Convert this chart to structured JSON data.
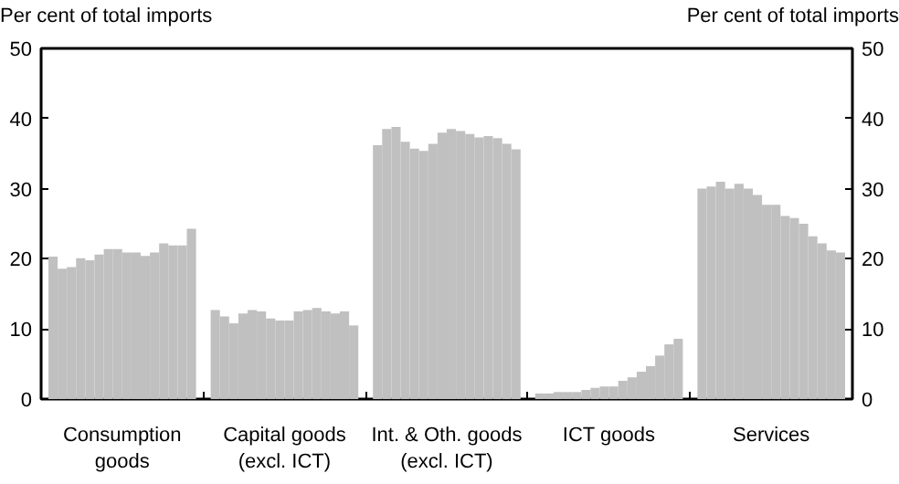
{
  "chart_data": {
    "type": "bar",
    "ylabel": "Per cent of total imports",
    "y2label": "Per cent of total imports",
    "categories": [
      "Consumption\ngoods",
      "Capital goods\n(excl. ICT)",
      "Int. & Oth. goods\n(excl. ICT)",
      "ICT goods",
      "Services"
    ],
    "ylim": [
      0,
      50
    ],
    "yticks": [
      0,
      10,
      20,
      30,
      40,
      50
    ],
    "y2lim": [
      0,
      50
    ],
    "y2ticks": [
      0,
      10,
      20,
      30,
      40,
      50
    ],
    "grid": false,
    "series": [
      {
        "color": "#c0c0c0",
        "values": [
          20.3,
          12.7,
          36.2,
          0.8,
          30.0
        ]
      },
      {
        "color": "#c0c0c0",
        "values": [
          18.6,
          11.8,
          38.5,
          0.8,
          30.3
        ]
      },
      {
        "color": "#c0c0c0",
        "values": [
          18.8,
          10.8,
          38.8,
          1.0,
          31.0
        ]
      },
      {
        "color": "#c0c0c0",
        "values": [
          20.1,
          12.2,
          36.7,
          1.0,
          30.0
        ]
      },
      {
        "color": "#c0c0c0",
        "values": [
          19.8,
          12.7,
          35.7,
          1.0,
          30.7
        ]
      },
      {
        "color": "#c0c0c0",
        "values": [
          20.6,
          12.5,
          35.4,
          1.3,
          30.0
        ]
      },
      {
        "color": "#c0c0c0",
        "values": [
          21.4,
          11.5,
          36.4,
          1.6,
          29.1
        ]
      },
      {
        "color": "#c0c0c0",
        "values": [
          21.4,
          11.2,
          38.0,
          1.8,
          27.7
        ]
      },
      {
        "color": "#c0c0c0",
        "values": [
          20.9,
          11.2,
          38.5,
          1.8,
          27.7
        ]
      },
      {
        "color": "#c0c0c0",
        "values": [
          20.9,
          12.5,
          38.2,
          2.6,
          26.1
        ]
      },
      {
        "color": "#c0c0c0",
        "values": [
          20.4,
          12.7,
          37.8,
          3.1,
          25.8
        ]
      },
      {
        "color": "#c0c0c0",
        "values": [
          20.9,
          13.0,
          37.3,
          3.9,
          25.0
        ]
      },
      {
        "color": "#c0c0c0",
        "values": [
          22.2,
          12.5,
          37.5,
          4.7,
          23.2
        ]
      },
      {
        "color": "#c0c0c0",
        "values": [
          21.9,
          12.2,
          37.2,
          6.2,
          22.2
        ]
      },
      {
        "color": "#c0c0c0",
        "values": [
          21.9,
          12.5,
          36.4,
          7.8,
          21.2
        ]
      },
      {
        "color": "#c0c0c0",
        "values": [
          24.3,
          10.5,
          35.6,
          8.6,
          20.9
        ]
      }
    ]
  }
}
